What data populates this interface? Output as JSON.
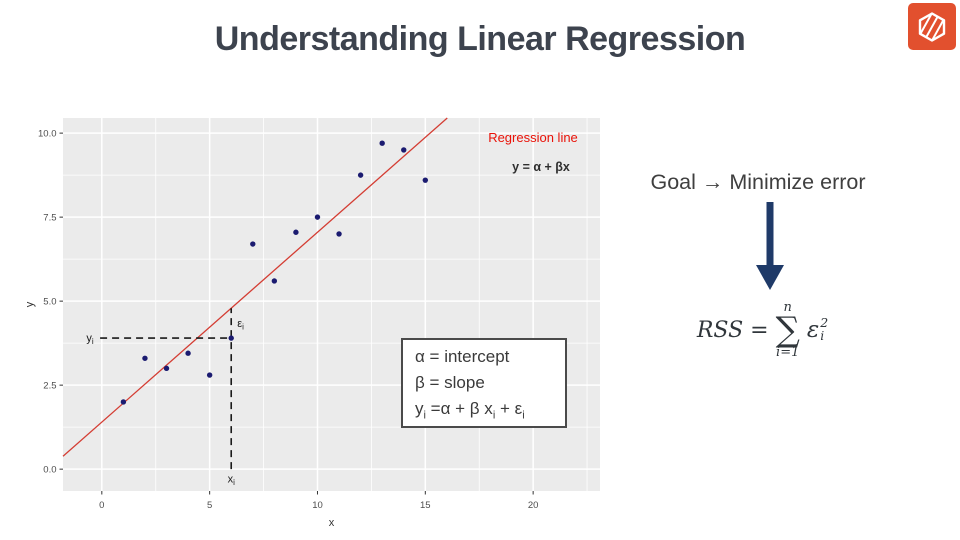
{
  "slide": {
    "title": "Understanding Linear Regression",
    "title_color": "#3d434e",
    "background": "#ffffff"
  },
  "logo": {
    "bg_color": "#e2502e",
    "icon": "striped-hexagon"
  },
  "goal": {
    "text": "Goal → Minimize error",
    "text_color": "#3f3f3f",
    "arrow_color": "#1f3a68"
  },
  "formula": {
    "lhs": "RSS =",
    "sum_upper": "n",
    "sum_symbol": "∑",
    "sum_lower": "i=1",
    "term_base": "ε",
    "term_sup": "2",
    "term_sub": "i",
    "color": "#30363b"
  },
  "legend_box": {
    "line1": "α = intercept",
    "line2": "β = slope",
    "line3": {
      "p1": "y",
      "s1": "i",
      "p2": " =α + β x",
      "s2": "i",
      "p3": " + ε",
      "s3": "i"
    },
    "border_color": "#4a4a4a",
    "text_color": "#3a3a3a"
  },
  "chart_data": {
    "type": "scatter",
    "xlabel": "x",
    "ylabel": "y",
    "xlim": [
      -1.8,
      23.1
    ],
    "ylim": [
      -0.65,
      10.45
    ],
    "x_ticks": [
      0,
      5,
      10,
      15,
      20
    ],
    "x_tick_labels": [
      "0",
      "5",
      "10",
      "15",
      "20"
    ],
    "y_ticks": [
      0,
      2.5,
      5,
      7.5,
      10
    ],
    "y_tick_labels": [
      "0.0",
      "2.5",
      "5.0",
      "7.5",
      "10.0"
    ],
    "panel_bg": "#ebebeb",
    "grid_color": "#ffffff",
    "tick_label_color": "#4d4d4d",
    "axis_title_color": "#333333",
    "points": {
      "x": [
        1,
        2,
        3,
        4,
        5,
        6,
        7,
        8,
        9,
        10,
        11,
        12,
        13,
        14,
        15
      ],
      "y": [
        2.0,
        3.3,
        3.0,
        3.45,
        2.8,
        3.9,
        6.7,
        5.6,
        7.05,
        7.5,
        7.0,
        8.75,
        9.7,
        9.5,
        8.6
      ]
    },
    "point_color": "#1b1b70",
    "regression_line": {
      "slope": 0.565,
      "intercept": 1.4,
      "color": "#d43d33",
      "label": "Regression line",
      "label_color": "#ea1208",
      "equation": "y = α + βx",
      "equation_color": "#2f2f2f"
    },
    "highlight": {
      "x": 6,
      "y": 3.9,
      "label_y_base": "y",
      "label_y_sub": "i",
      "label_x_base": "x",
      "label_x_sub": "i",
      "label_eps_base": "ε",
      "label_eps_sub": "i",
      "dash_color": "#1a1a1a"
    }
  }
}
